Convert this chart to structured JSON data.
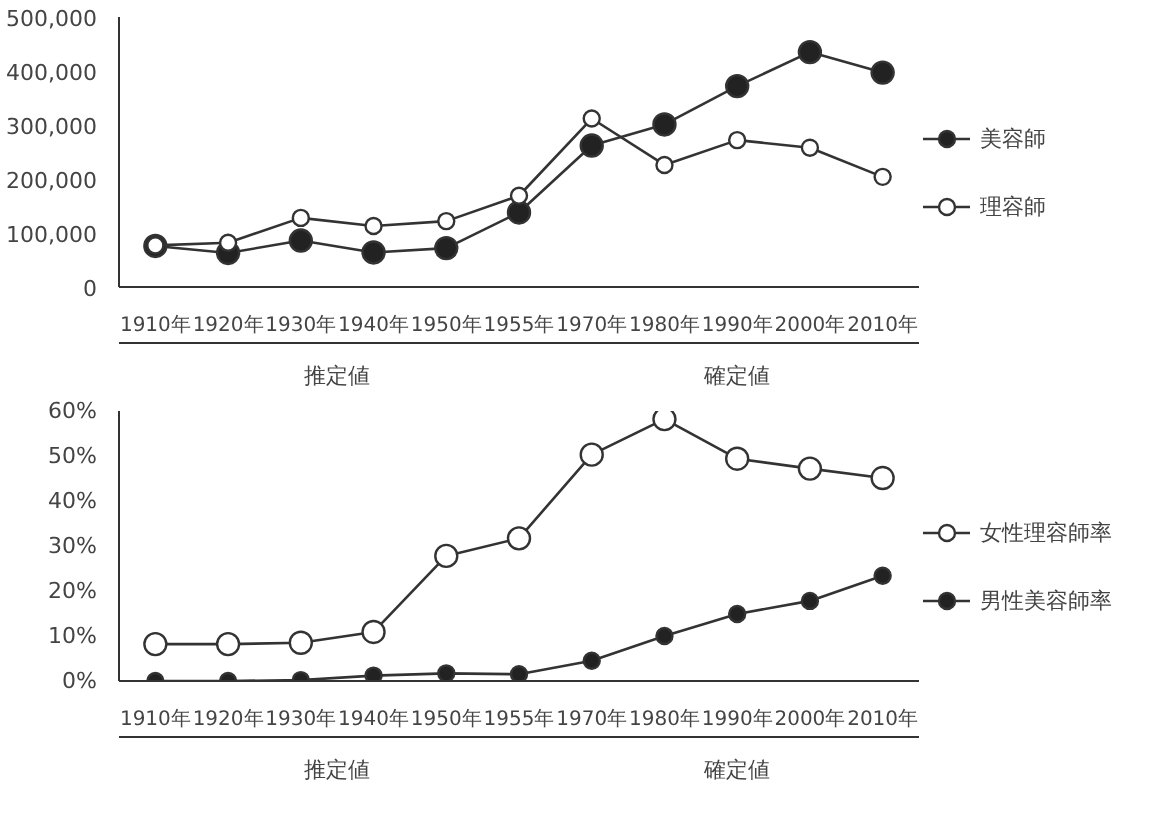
{
  "chart_data": [
    {
      "type": "line",
      "categories": [
        "1910年",
        "1920年",
        "1930年",
        "1940年",
        "1950年",
        "1955年",
        "1970年",
        "1980年",
        "1990年",
        "2000年",
        "2010年"
      ],
      "series": [
        {
          "name": "美容師",
          "color": "#222222",
          "values": [
            76000,
            63000,
            86000,
            64000,
            72000,
            138000,
            262000,
            301000,
            372000,
            435000,
            397000
          ]
        },
        {
          "name": "理容師",
          "color": "#ffffff",
          "values": [
            77000,
            82000,
            128000,
            113000,
            122000,
            169000,
            312000,
            226000,
            272000,
            258000,
            204000
          ]
        }
      ],
      "ylim": [
        0,
        500000
      ],
      "yticks": [
        0,
        {
          "value": 100000,
          "label": "100,000"
        },
        {
          "value": 200000,
          "label": "200,000"
        },
        {
          "value": 300000,
          "label": "300,000"
        },
        {
          "value": 400000,
          "label": "400,000"
        },
        {
          "value": 500000,
          "label": "500,000"
        }
      ],
      "annotations": [
        "推定値",
        "確定値"
      ],
      "marker": "circle",
      "legend": "right",
      "grid": false
    },
    {
      "type": "line",
      "categories": [
        "1910年",
        "1920年",
        "1930年",
        "1940年",
        "1950年",
        "1955年",
        "1970年",
        "1980年",
        "1990年",
        "2000年",
        "2010年"
      ],
      "series": [
        {
          "name": "女性理容師率",
          "color": "#ffffff",
          "values": [
            8.2,
            8.2,
            8.5,
            10.9,
            27.8,
            31.7,
            50.3,
            58.2,
            49.4,
            47.2,
            45.1
          ]
        },
        {
          "name": "男性美容師率",
          "color": "#222222",
          "values": [
            0,
            0,
            0.2,
            1.2,
            1.7,
            1.5,
            4.5,
            10,
            14.9,
            17.8,
            23.4
          ]
        }
      ],
      "ylim": [
        0,
        60
      ],
      "yticks": [
        {
          "value": 0,
          "label": "0%"
        },
        {
          "value": 10,
          "label": "10%"
        },
        {
          "value": 20,
          "label": "20%"
        },
        {
          "value": 30,
          "label": "30%"
        },
        {
          "value": 40,
          "label": "40%"
        },
        {
          "value": 50,
          "label": "50%"
        },
        {
          "value": 60,
          "label": "60%"
        }
      ],
      "annotations": [
        "推定値",
        "確定値"
      ],
      "marker": "circle",
      "legend": "right",
      "grid": false
    }
  ]
}
